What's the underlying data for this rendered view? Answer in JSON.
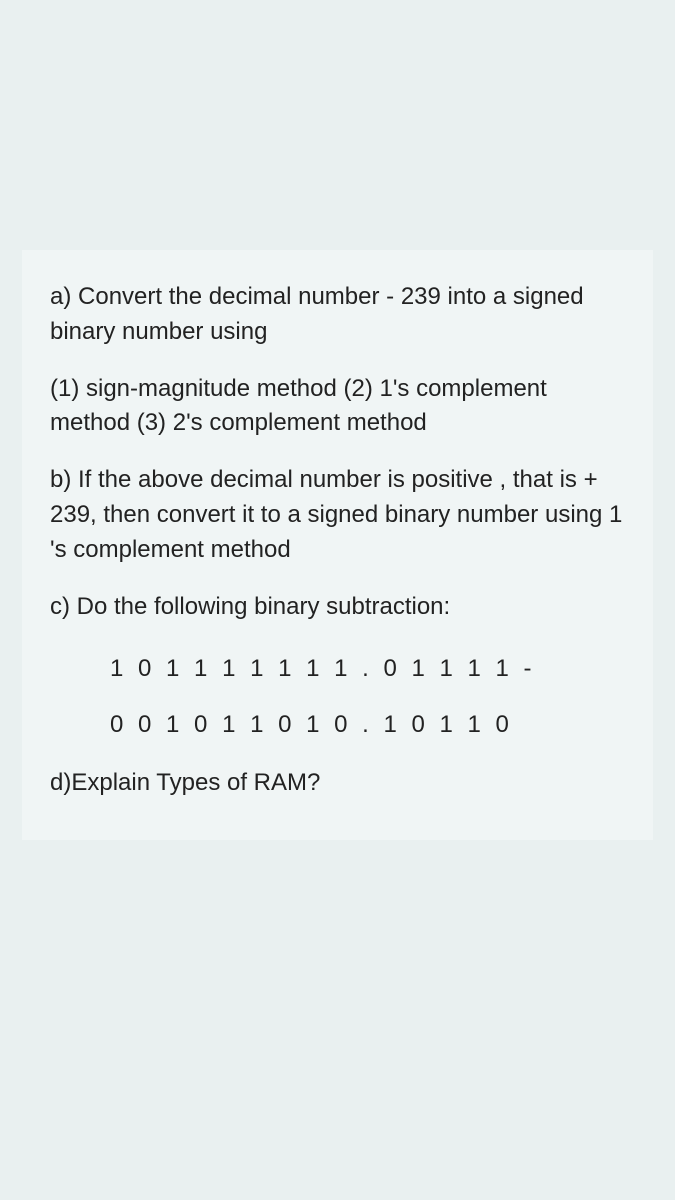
{
  "background_color": "#e9f0f0",
  "card_color": "#f0f5f5",
  "text_color": "#222222",
  "font_size_pt": 18,
  "questions": {
    "a_intro": "a) Convert the decimal number - 239  into a signed binary number using",
    "a_methods": "(1) sign-magnitude method    (2) 1's complement method   (3) 2's complement method",
    "b": "b) If the above decimal number is positive , that is  + 239,  then convert it to a signed binary number using 1 's complement method",
    "c_intro": "c)  Do the following binary subtraction:",
    "c_line1": "1 0 1 1 1 1 1 1 1 . 0 1 1 1 1 -",
    "c_line2": "0 0 1 0 1 1 0 1 0 . 1 0 1 1 0",
    "d": "d)Explain Types of RAM?"
  }
}
